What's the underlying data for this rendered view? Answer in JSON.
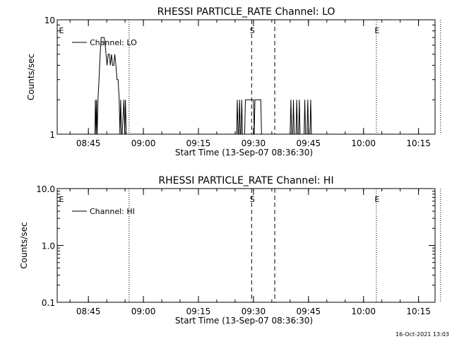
{
  "footer_timestamp": "16-Oct-2021 13:03",
  "chart_data": [
    {
      "type": "line",
      "title": "RHESSI PARTICLE_RATE Channel: LO",
      "xlabel": "Start Time (13-Sep-07 08:36:30)",
      "ylabel": "Counts/sec",
      "x_units": "minutes after 08:36:30",
      "xlim": [
        0,
        103
      ],
      "ylim": [
        1,
        10
      ],
      "y_scale": "log",
      "x_ticks": [
        {
          "value": 8.5,
          "label": "08:45"
        },
        {
          "value": 23.5,
          "label": "09:00"
        },
        {
          "value": 38.5,
          "label": "09:15"
        },
        {
          "value": 53.5,
          "label": "09:30"
        },
        {
          "value": 68.5,
          "label": "09:45"
        },
        {
          "value": 83.5,
          "label": "10:00"
        },
        {
          "value": 98.5,
          "label": "10:15"
        }
      ],
      "y_ticks": [
        {
          "value": 1,
          "label": "1"
        },
        {
          "value": 10,
          "label": "10"
        }
      ],
      "legend": {
        "label": "Channel: LO",
        "position": "top-left"
      },
      "markers": [
        {
          "x": 0.3,
          "label": "E",
          "style": "dotted"
        },
        {
          "x": 19.6,
          "label": "",
          "style": "dotted"
        },
        {
          "x": 53.0,
          "label": "S",
          "style": "dashed"
        },
        {
          "x": 59.3,
          "label": "",
          "style": "dashed"
        },
        {
          "x": 87.0,
          "label": "E",
          "style": "dotted"
        },
        {
          "x": 104.5,
          "label": "",
          "style": "dotted"
        }
      ],
      "series": [
        {
          "name": "Channel: LO",
          "points": [
            [
              10.3,
              1
            ],
            [
              10.4,
              2
            ],
            [
              10.6,
              1
            ],
            [
              10.7,
              2
            ],
            [
              10.9,
              1
            ],
            [
              11.1,
              2
            ],
            [
              11.4,
              3
            ],
            [
              11.7,
              5
            ],
            [
              12.0,
              7
            ],
            [
              12.4,
              7
            ],
            [
              12.8,
              7
            ],
            [
              13.1,
              6
            ],
            [
              13.3,
              5
            ],
            [
              13.6,
              4
            ],
            [
              13.9,
              5
            ],
            [
              14.2,
              5
            ],
            [
              14.5,
              4
            ],
            [
              14.8,
              5
            ],
            [
              15.1,
              4
            ],
            [
              15.4,
              4
            ],
            [
              15.7,
              5
            ],
            [
              16.0,
              4
            ],
            [
              16.3,
              3
            ],
            [
              16.6,
              3
            ],
            [
              16.9,
              2
            ],
            [
              17.1,
              1
            ],
            [
              17.3,
              2
            ],
            [
              17.5,
              1
            ],
            [
              17.7,
              1
            ],
            [
              18.2,
              2
            ],
            [
              18.4,
              1
            ],
            [
              18.6,
              2
            ],
            [
              18.8,
              1
            ],
            [
              48.9,
              1
            ],
            [
              49.1,
              2
            ],
            [
              49.3,
              1
            ],
            [
              49.5,
              1
            ],
            [
              49.7,
              2
            ],
            [
              49.9,
              1
            ],
            [
              50.1,
              1
            ],
            [
              50.3,
              2
            ],
            [
              50.5,
              1
            ],
            [
              51.1,
              1
            ],
            [
              51.3,
              2
            ],
            [
              53.5,
              2
            ],
            [
              53.7,
              1
            ],
            [
              53.9,
              2
            ],
            [
              55.5,
              2
            ],
            [
              55.7,
              1
            ],
            [
              63.5,
              1
            ],
            [
              63.7,
              2
            ],
            [
              63.9,
              1
            ],
            [
              64.2,
              1
            ],
            [
              64.4,
              2
            ],
            [
              64.6,
              1
            ],
            [
              65.1,
              1
            ],
            [
              65.3,
              2
            ],
            [
              65.5,
              1
            ],
            [
              65.8,
              1
            ],
            [
              66.0,
              2
            ],
            [
              66.2,
              1
            ],
            [
              67.3,
              1
            ],
            [
              67.5,
              2
            ],
            [
              67.7,
              1
            ],
            [
              68.1,
              1
            ],
            [
              68.3,
              2
            ],
            [
              68.5,
              1
            ],
            [
              68.9,
              1
            ],
            [
              69.1,
              2
            ],
            [
              69.3,
              1
            ],
            [
              69.7,
              1
            ]
          ]
        }
      ]
    },
    {
      "type": "line",
      "title": "RHESSI PARTICLE_RATE Channel: HI",
      "xlabel": "Start Time (13-Sep-07 08:36:30)",
      "ylabel": "Counts/sec",
      "x_units": "minutes after 08:36:30",
      "xlim": [
        0,
        103
      ],
      "ylim": [
        0.1,
        10
      ],
      "y_scale": "log",
      "x_ticks": [
        {
          "value": 8.5,
          "label": "08:45"
        },
        {
          "value": 23.5,
          "label": "09:00"
        },
        {
          "value": 38.5,
          "label": "09:15"
        },
        {
          "value": 53.5,
          "label": "09:30"
        },
        {
          "value": 68.5,
          "label": "09:45"
        },
        {
          "value": 83.5,
          "label": "10:00"
        },
        {
          "value": 98.5,
          "label": "10:15"
        }
      ],
      "y_ticks": [
        {
          "value": 0.1,
          "label": "0.1"
        },
        {
          "value": 1,
          "label": "1.0"
        },
        {
          "value": 10,
          "label": "10.0"
        }
      ],
      "legend": {
        "label": "Channel: HI",
        "position": "top-left"
      },
      "markers": [
        {
          "x": 0.3,
          "label": "E",
          "style": "dotted"
        },
        {
          "x": 19.6,
          "label": "",
          "style": "dotted"
        },
        {
          "x": 53.0,
          "label": "S",
          "style": "dashed"
        },
        {
          "x": 59.3,
          "label": "",
          "style": "dashed"
        },
        {
          "x": 87.0,
          "label": "E",
          "style": "dotted"
        },
        {
          "x": 104.5,
          "label": "",
          "style": "dotted"
        }
      ],
      "series": [
        {
          "name": "Channel: HI",
          "points": []
        }
      ]
    }
  ]
}
